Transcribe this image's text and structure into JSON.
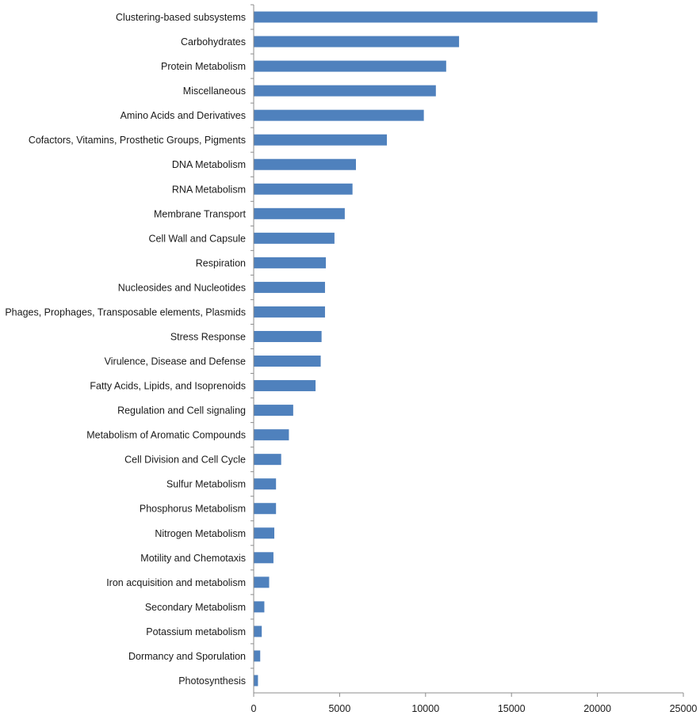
{
  "chart_data": {
    "type": "bar",
    "orientation": "horizontal",
    "title": "",
    "xlabel": "",
    "ylabel": "",
    "xlim": [
      0,
      25000
    ],
    "x_ticks": [
      "0",
      "5000",
      "10000",
      "15000",
      "20000",
      "25000"
    ],
    "grid": false,
    "legend": "none",
    "bar_color": "#4f81bd",
    "categories": [
      "Clustering-based subsystems",
      "Carbohydrates",
      "Protein Metabolism",
      "Miscellaneous",
      "Amino Acids and Derivatives",
      "Cofactors, Vitamins, Prosthetic Groups, Pigments",
      "DNA Metabolism",
      "RNA Metabolism",
      "Membrane Transport",
      "Cell Wall and Capsule",
      "Respiration",
      "Nucleosides and Nucleotides",
      "Phages, Prophages, Transposable elements, Plasmids",
      "Stress Response",
      "Virulence, Disease and Defense",
      "Fatty Acids, Lipids, and Isoprenoids",
      "Regulation and Cell signaling",
      "Metabolism of Aromatic Compounds",
      "Cell Division and Cell Cycle",
      "Sulfur Metabolism",
      "Phosphorus Metabolism",
      "Nitrogen Metabolism",
      "Motility and Chemotaxis",
      "Iron acquisition and metabolism",
      "Secondary Metabolism",
      "Potassium metabolism",
      "Dormancy and Sporulation",
      "Photosynthesis"
    ],
    "values": [
      20000,
      11950,
      11200,
      10600,
      9900,
      7750,
      5950,
      5750,
      5300,
      4700,
      4200,
      4150,
      4150,
      3950,
      3900,
      3600,
      2300,
      2050,
      1600,
      1300,
      1300,
      1200,
      1150,
      900,
      620,
      470,
      380,
      250
    ]
  }
}
